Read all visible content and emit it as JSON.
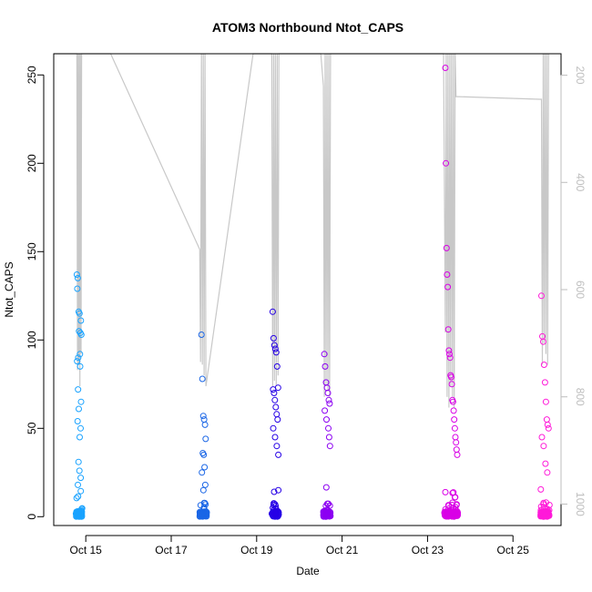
{
  "chart_data": {
    "type": "scatter",
    "title": "ATOM3 Northbound Ntot_CAPS",
    "xlabel": "Date",
    "ylabel": "Ntot_CAPS",
    "x_ticks": [
      "Oct 15",
      "Oct 17",
      "Oct 19",
      "Oct 21",
      "Oct 23",
      "Oct 25"
    ],
    "x_range": [
      "2016-10-14 06:00",
      "2016-10-26 03:00"
    ],
    "ylim": [
      -5,
      262
    ],
    "y_ticks": [
      0,
      50,
      100,
      150,
      200,
      250
    ],
    "y2_ticks": [
      200,
      400,
      600,
      800,
      1000
    ],
    "y2_lim": [
      1040,
      160
    ],
    "y2_color": "#bebebe",
    "grid": false,
    "series": [
      {
        "color": "#1aa3ff",
        "x": [
          "2016-10-14 19:00",
          "2016-10-14 19:30",
          "2016-10-14 20:00",
          "2016-10-14 20:30",
          "2016-10-14 21:00",
          "2016-10-14 21:30",
          "2016-10-14 19:15",
          "2016-10-14 20:15",
          "2016-10-14 21:15",
          "2016-10-14 19:45",
          "2016-10-14 20:45",
          "2016-10-14 19:10",
          "2016-10-14 20:50",
          "2016-10-14 19:40",
          "2016-10-14 21:20",
          "2016-10-14 20:05",
          "2016-10-14 19:25",
          "2016-10-14 21:05",
          "2016-10-14 20:35",
          "2016-10-14 19:55",
          "2016-10-14 20:25",
          "2016-10-14 21:10",
          "2016-10-14 19:35"
        ],
        "y": [
          137,
          135,
          116,
          115,
          104,
          103,
          129,
          105,
          111,
          90,
          92,
          88,
          85,
          72,
          65,
          61,
          54,
          50,
          45,
          31,
          26,
          22,
          18
        ]
      },
      {
        "color": "#1a66e6",
        "x": [
          "2016-10-17 17:00",
          "2016-10-17 17:30",
          "2016-10-17 18:00",
          "2016-10-17 18:30",
          "2016-10-17 19:00",
          "2016-10-17 19:20",
          "2016-10-17 17:45",
          "2016-10-17 18:15",
          "2016-10-17 18:45",
          "2016-10-17 17:15",
          "2016-10-17 19:10",
          "2016-10-17 18:05"
        ],
        "y": [
          103,
          78,
          57,
          55,
          52,
          44,
          36,
          35,
          28,
          25,
          18,
          15
        ]
      },
      {
        "color": "#2600e6",
        "x": [
          "2016-10-19 09:00",
          "2016-10-19 09:30",
          "2016-10-19 10:00",
          "2016-10-19 10:30",
          "2016-10-19 11:00",
          "2016-10-19 11:30",
          "2016-10-19 12:00",
          "2016-10-19 09:15",
          "2016-10-19 09:45",
          "2016-10-19 10:15",
          "2016-10-19 10:45",
          "2016-10-19 11:15",
          "2016-10-19 11:45",
          "2016-10-19 09:20",
          "2016-10-19 10:20",
          "2016-10-19 11:20",
          "2016-10-19 12:10"
        ],
        "y": [
          116,
          101,
          97,
          95,
          93,
          85,
          73,
          72,
          70,
          66,
          62,
          58,
          55,
          50,
          45,
          40,
          35
        ]
      },
      {
        "color": "#8c00f2",
        "x": [
          "2016-10-20 14:00",
          "2016-10-20 14:30",
          "2016-10-20 15:00",
          "2016-10-20 15:30",
          "2016-10-20 16:00",
          "2016-10-20 16:30",
          "2016-10-20 17:00",
          "2016-10-20 14:15",
          "2016-10-20 15:15",
          "2016-10-20 16:15",
          "2016-10-20 16:45",
          "2016-10-20 17:10"
        ],
        "y": [
          92,
          85,
          76,
          73,
          70,
          66,
          64,
          60,
          55,
          50,
          45,
          40
        ]
      },
      {
        "color": "#d900e6",
        "x": [
          "2016-10-23 10:00",
          "2016-10-23 10:20",
          "2016-10-23 10:40",
          "2016-10-23 11:00",
          "2016-10-23 11:20",
          "2016-10-23 11:40",
          "2016-10-23 12:00",
          "2016-10-23 12:20",
          "2016-10-23 12:40",
          "2016-10-23 13:00",
          "2016-10-23 13:20",
          "2016-10-23 13:40",
          "2016-10-23 14:00",
          "2016-10-23 14:20",
          "2016-10-23 14:40",
          "2016-10-23 15:00",
          "2016-10-23 15:20",
          "2016-10-23 15:40",
          "2016-10-23 16:00",
          "2016-10-23 16:20",
          "2016-10-23 16:40"
        ],
        "y": [
          254,
          200,
          152,
          137,
          130,
          106,
          94,
          92,
          90,
          80,
          79,
          75,
          66,
          65,
          60,
          55,
          50,
          45,
          42,
          38,
          35
        ]
      },
      {
        "color": "#ff1ad9",
        "x": [
          "2016-10-25 16:00",
          "2016-10-25 16:30",
          "2016-10-25 17:00",
          "2016-10-25 17:30",
          "2016-10-25 18:00",
          "2016-10-25 18:30",
          "2016-10-25 19:00",
          "2016-10-25 19:30",
          "2016-10-25 20:00",
          "2016-10-25 16:15",
          "2016-10-25 17:15",
          "2016-10-25 18:15",
          "2016-10-25 19:15"
        ],
        "y": [
          125,
          102,
          99,
          86,
          76,
          65,
          55,
          52,
          50,
          45,
          40,
          30,
          25
        ]
      }
    ],
    "bursts": [
      {
        "color": "#1aa3ff",
        "start": "2016-10-14 18:30",
        "end": "2016-10-14 22:00"
      },
      {
        "color": "#1a66e6",
        "start": "2016-10-17 16:00",
        "end": "2016-10-17 20:00"
      },
      {
        "color": "#2600e6",
        "start": "2016-10-19 08:30",
        "end": "2016-10-19 12:30"
      },
      {
        "color": "#8c00f2",
        "start": "2016-10-20 13:30",
        "end": "2016-10-20 17:30"
      },
      {
        "color": "#d900e6",
        "start": "2016-10-23 09:30",
        "end": "2016-10-23 17:00"
      },
      {
        "color": "#ff1ad9",
        "start": "2016-10-25 15:30",
        "end": "2016-10-25 20:30"
      }
    ],
    "altitude_line": {
      "color": "#c8c8c8",
      "x": [
        "2016-10-14 06:00",
        "2016-10-14 19:00",
        "2016-10-14 19:20",
        "2016-10-14 19:40",
        "2016-10-14 20:00",
        "2016-10-14 20:20",
        "2016-10-14 20:40",
        "2016-10-14 21:00",
        "2016-10-14 21:20",
        "2016-10-14 21:40",
        "2016-10-15 14:00",
        "2016-10-17 16:00",
        "2016-10-17 16:30",
        "2016-10-17 17:00",
        "2016-10-17 17:30",
        "2016-10-17 18:00",
        "2016-10-17 18:30",
        "2016-10-17 19:00",
        "2016-10-17 19:30",
        "2016-10-18 22:00",
        "2016-10-19 08:30",
        "2016-10-19 09:00",
        "2016-10-19 09:30",
        "2016-10-19 10:00",
        "2016-10-19 10:30",
        "2016-10-19 11:00",
        "2016-10-19 11:30",
        "2016-10-19 12:00",
        "2016-10-19 12:30",
        "2016-10-20 12:00",
        "2016-10-20 13:30",
        "2016-10-20 14:00",
        "2016-10-20 14:30",
        "2016-10-20 15:00",
        "2016-10-20 15:30",
        "2016-10-20 16:00",
        "2016-10-20 16:30",
        "2016-10-20 17:00",
        "2016-10-20 17:30",
        "2016-10-22 12:00",
        "2016-10-23 09:00",
        "2016-10-23 10:00",
        "2016-10-23 10:30",
        "2016-10-23 11:00",
        "2016-10-23 11:30",
        "2016-10-23 12:00",
        "2016-10-23 12:30",
        "2016-10-23 13:00",
        "2016-10-23 13:30",
        "2016-10-23 14:00",
        "2016-10-23 14:30",
        "2016-10-23 15:00",
        "2016-10-23 15:30",
        "2016-10-23 16:00",
        "2016-10-23 16:30",
        "2016-10-23 17:00",
        "2016-10-25 15:00",
        "2016-10-25 16:00",
        "2016-10-25 16:30",
        "2016-10-25 17:00",
        "2016-10-25 17:30",
        "2016-10-25 18:00",
        "2016-10-25 18:30",
        "2016-10-25 19:00",
        "2016-10-25 19:30",
        "2016-10-25 20:00"
      ],
      "y": [
        130,
        140,
        750,
        140,
        740,
        140,
        780,
        140,
        720,
        140,
        140,
        525,
        735,
        140,
        740,
        140,
        760,
        140,
        780,
        140,
        160,
        780,
        140,
        770,
        140,
        780,
        140,
        760,
        140,
        140,
        220,
        800,
        140,
        780,
        140,
        790,
        140,
        800,
        140,
        140,
        140,
        680,
        140,
        800,
        140,
        820,
        140,
        780,
        140,
        800,
        140,
        820,
        140,
        240,
        240,
        240,
        245,
        245,
        740,
        140,
        700,
        140,
        720,
        140,
        740,
        140
      ]
    }
  }
}
